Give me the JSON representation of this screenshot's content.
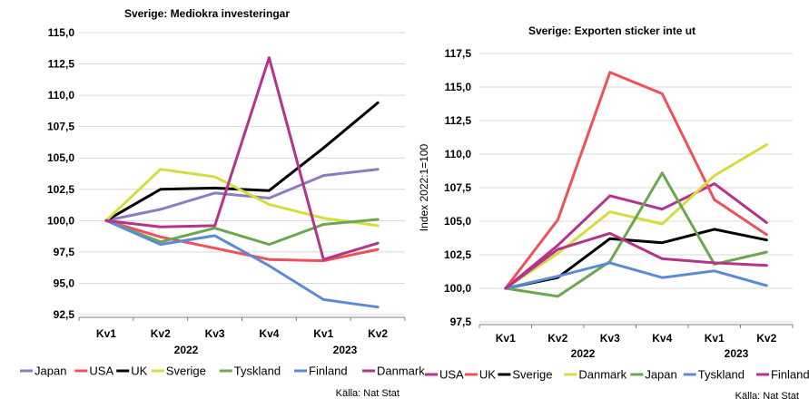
{
  "chart_data": [
    {
      "type": "line",
      "title": "Sverige: Mediokra investeringar",
      "ylabel": "",
      "ylim": [
        92.5,
        115.0
      ],
      "ytick_labels": [
        "115,0",
        "112,5",
        "110,0",
        "107,5",
        "105,0",
        "102,5",
        "100,0",
        "97,5",
        "95,0",
        "92,5"
      ],
      "ytick_values": [
        115.0,
        112.5,
        110.0,
        107.5,
        105.0,
        102.5,
        100.0,
        97.5,
        95.0,
        92.5
      ],
      "categories": [
        "Kv1",
        "Kv2",
        "Kv3",
        "Kv4",
        "Kv1",
        "Kv2"
      ],
      "year_labels": [
        "2022",
        "2023"
      ],
      "series": [
        {
          "name": "Japan",
          "color": "#8e7cc3",
          "values": [
            100.0,
            100.9,
            102.2,
            101.8,
            103.6,
            104.1
          ]
        },
        {
          "name": "USA",
          "color": "#f0505a",
          "values": [
            100.0,
            98.7,
            97.8,
            96.9,
            96.8,
            97.7
          ]
        },
        {
          "name": "UK",
          "color": "#000000",
          "values": [
            100.0,
            102.5,
            102.6,
            102.4,
            105.8,
            109.4
          ]
        },
        {
          "name": "Sverige",
          "color": "#d4dd3c",
          "values": [
            100.0,
            104.1,
            103.5,
            101.3,
            100.2,
            99.6
          ]
        },
        {
          "name": "Tyskland",
          "color": "#6aa84f",
          "values": [
            100.0,
            98.3,
            99.4,
            98.1,
            99.7,
            100.1
          ]
        },
        {
          "name": "Finland",
          "color": "#5b8ad8",
          "values": [
            100.0,
            98.1,
            98.8,
            96.4,
            93.7,
            93.1
          ]
        },
        {
          "name": "Danmark",
          "color": "#b5338a",
          "values": [
            100.0,
            99.5,
            99.6,
            113.0,
            96.9,
            98.2
          ]
        }
      ],
      "source": "Källa: Nat Stat"
    },
    {
      "type": "line",
      "title": "Sverige: Exporten sticker inte ut",
      "ylabel": "Index 2022:1=100",
      "ylim": [
        97.5,
        117.5
      ],
      "ytick_labels": [
        "117,5",
        "115,0",
        "112,5",
        "110,0",
        "107,5",
        "105,0",
        "102,5",
        "100,0",
        "97,5"
      ],
      "ytick_values": [
        117.5,
        115.0,
        112.5,
        110.0,
        107.5,
        105.0,
        102.5,
        100.0,
        97.5
      ],
      "categories": [
        "Kv1",
        "Kv2",
        "Kv3",
        "Kv4",
        "Kv1",
        "Kv2"
      ],
      "year_labels": [
        "2022",
        "2023"
      ],
      "series": [
        {
          "name": "USA",
          "color": "#b5338a",
          "values": [
            100.0,
            103.2,
            106.9,
            105.9,
            107.8,
            104.9
          ]
        },
        {
          "name": "UK",
          "color": "#f0505a",
          "values": [
            100.0,
            105.1,
            116.1,
            114.5,
            106.6,
            104.0
          ]
        },
        {
          "name": "Sverige",
          "color": "#000000",
          "values": [
            100.0,
            100.8,
            103.7,
            103.4,
            104.4,
            103.6
          ]
        },
        {
          "name": "Danmark",
          "color": "#d4dd3c",
          "values": [
            100.0,
            102.6,
            105.7,
            104.8,
            108.4,
            110.7
          ]
        },
        {
          "name": "Japan",
          "color": "#6aa84f",
          "values": [
            100.0,
            99.4,
            102.0,
            108.6,
            101.8,
            102.7
          ]
        },
        {
          "name": "Tyskland",
          "color": "#5b8ad8",
          "values": [
            100.0,
            100.9,
            101.9,
            100.8,
            101.3,
            100.2
          ]
        },
        {
          "name": "Finland",
          "color": "#b5338a",
          "values": [
            100.0,
            102.9,
            104.1,
            102.2,
            101.9,
            101.7
          ]
        }
      ],
      "source": "Källa: Nat Stat"
    }
  ]
}
